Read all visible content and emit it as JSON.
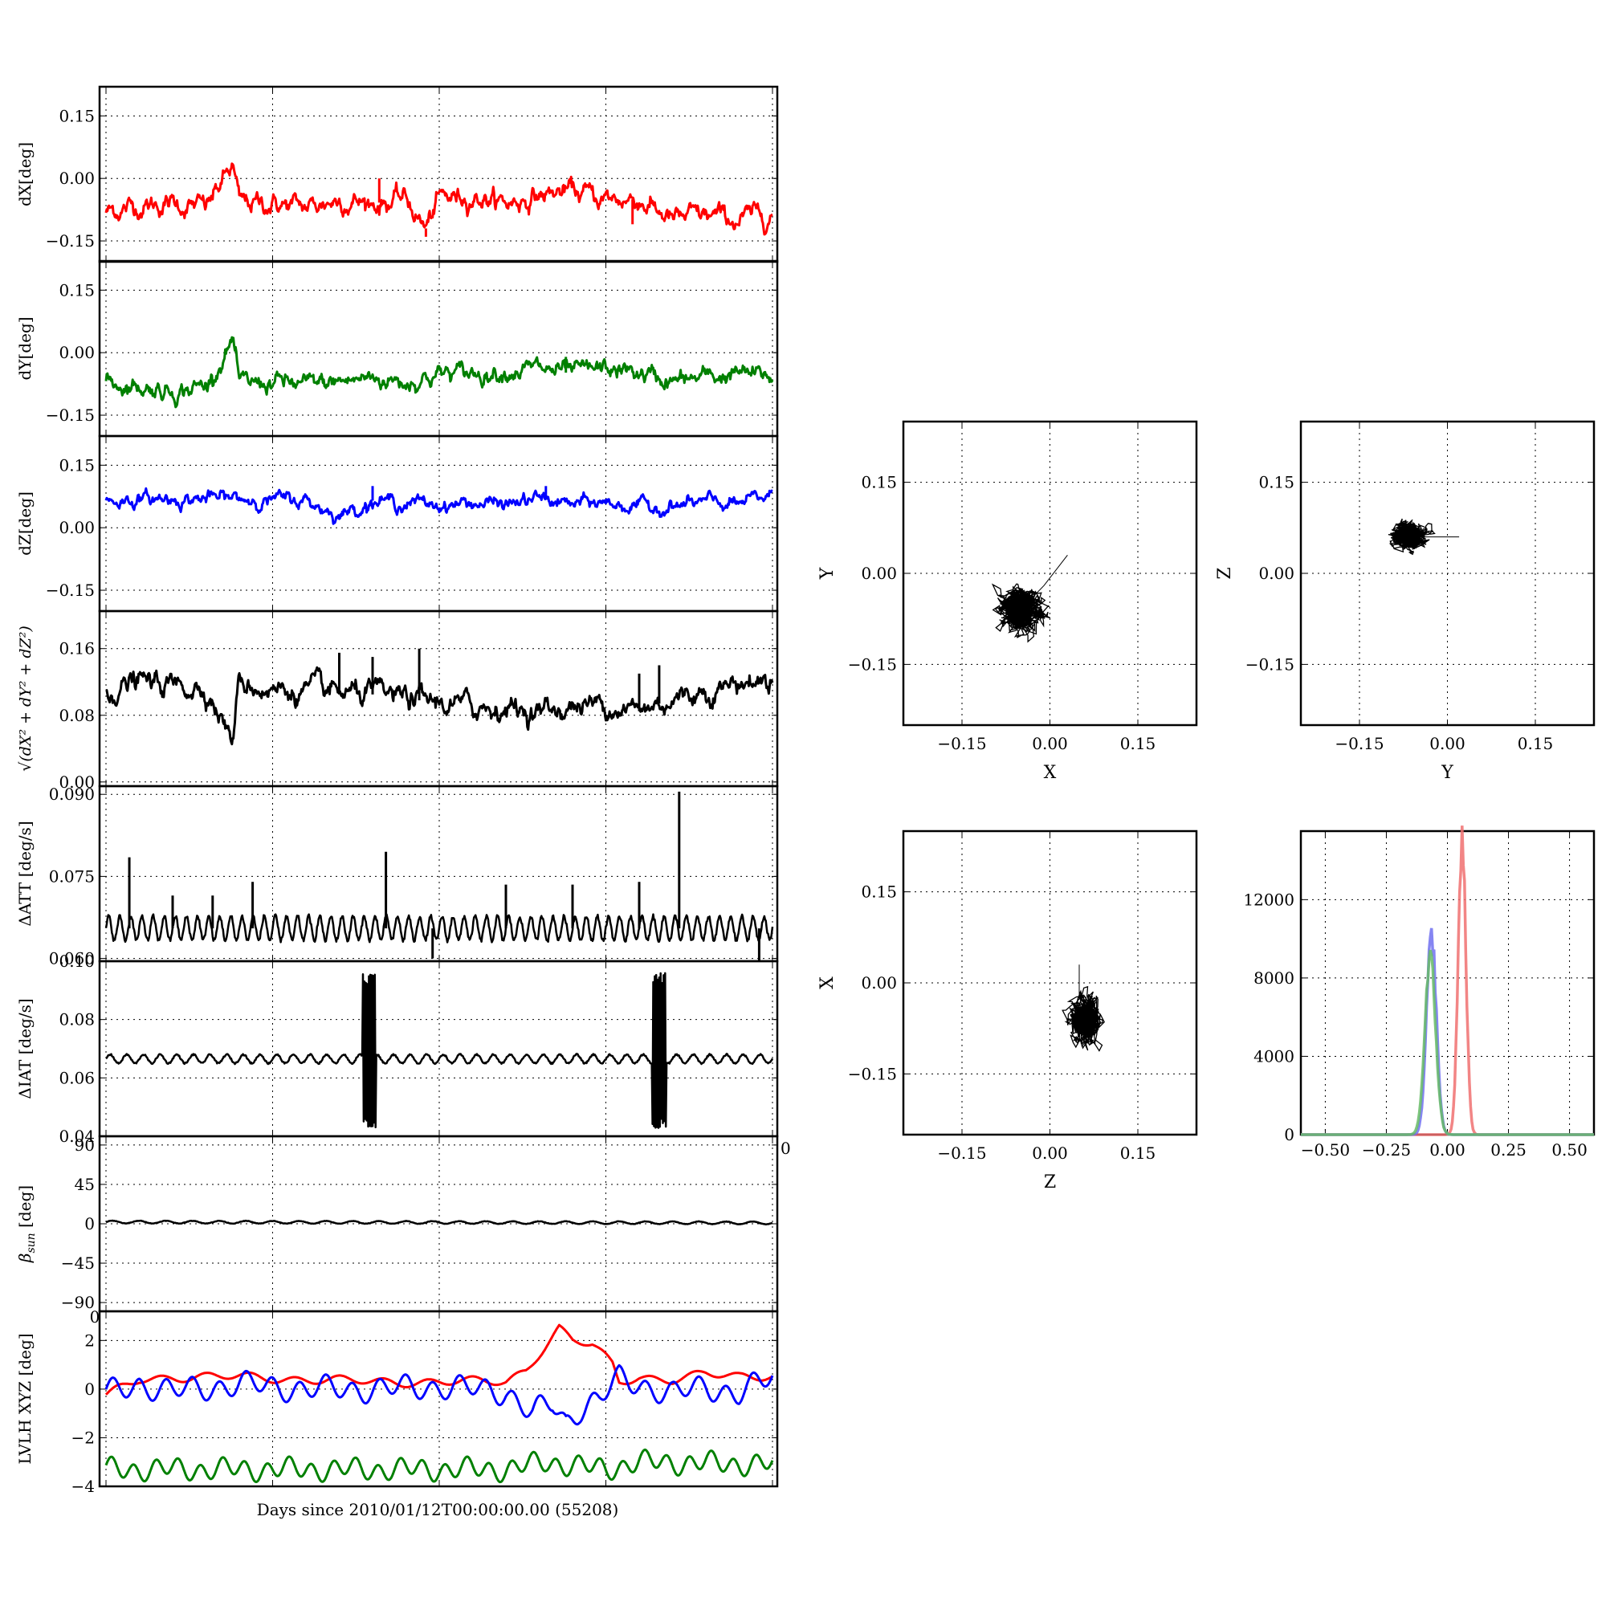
{
  "figure": {
    "xlabel": "Days since 2010/01/12T00:00:00.00 (55208)"
  },
  "colors": {
    "red": "#ff0000",
    "green": "#008000",
    "blue": "#0000ff",
    "black": "#000000",
    "hist_red": "#f07070",
    "hist_green": "#66bb66",
    "hist_blue": "#7070f0"
  },
  "chart_data": [
    {
      "id": "dX",
      "type": "line",
      "ylabel": "dX[deg]",
      "ylim": [
        -0.2,
        0.22
      ],
      "yticks": [
        "0.15",
        "0.00",
        "−0.15"
      ],
      "ytick_values": [
        0.15,
        0.0,
        -0.15
      ],
      "grid": true,
      "x_ticks_labeled": false,
      "series": [
        {
          "color": "red",
          "baseline": -0.06,
          "amp": 0.022,
          "points": [
            [
              0,
              -0.08
            ],
            [
              0.05,
              -0.065
            ],
            [
              0.1,
              -0.06
            ],
            [
              0.15,
              -0.07
            ],
            [
              0.19,
              0.03
            ],
            [
              0.2,
              -0.06
            ],
            [
              0.25,
              -0.06
            ],
            [
              0.3,
              -0.07
            ],
            [
              0.35,
              -0.05
            ],
            [
              0.4,
              -0.06
            ],
            [
              0.45,
              -0.05
            ],
            [
              0.48,
              -0.12
            ],
            [
              0.5,
              -0.05
            ],
            [
              0.55,
              -0.04
            ],
            [
              0.6,
              -0.06
            ],
            [
              0.65,
              -0.04
            ],
            [
              0.7,
              -0.03
            ],
            [
              0.75,
              -0.05
            ],
            [
              0.8,
              -0.05
            ],
            [
              0.85,
              -0.1
            ],
            [
              0.9,
              -0.09
            ],
            [
              0.95,
              -0.1
            ],
            [
              1,
              -0.08
            ]
          ],
          "spikes": [
            [
              0.19,
              0.03
            ],
            [
              0.48,
              -0.14
            ],
            [
              0.41,
              0.0
            ],
            [
              0.79,
              -0.11
            ]
          ]
        }
      ]
    },
    {
      "id": "dY",
      "type": "line",
      "ylabel": "dY[deg]",
      "ylim": [
        -0.2,
        0.22
      ],
      "yticks": [
        "0.15",
        "0.00",
        "−0.15"
      ],
      "ytick_values": [
        0.15,
        0.0,
        -0.15
      ],
      "grid": true,
      "x_ticks_labeled": false,
      "series": [
        {
          "color": "green",
          "baseline": -0.07,
          "amp": 0.02,
          "points": [
            [
              0,
              -0.07
            ],
            [
              0.05,
              -0.08
            ],
            [
              0.1,
              -0.09
            ],
            [
              0.15,
              -0.08
            ],
            [
              0.19,
              0.03
            ],
            [
              0.2,
              -0.08
            ],
            [
              0.25,
              -0.07
            ],
            [
              0.3,
              -0.08
            ],
            [
              0.35,
              -0.07
            ],
            [
              0.4,
              -0.06
            ],
            [
              0.45,
              -0.07
            ],
            [
              0.5,
              -0.05
            ],
            [
              0.55,
              -0.05
            ],
            [
              0.6,
              -0.04
            ],
            [
              0.65,
              -0.04
            ],
            [
              0.7,
              -0.05
            ],
            [
              0.75,
              -0.04
            ],
            [
              0.8,
              -0.05
            ],
            [
              0.85,
              -0.07
            ],
            [
              0.9,
              -0.06
            ],
            [
              0.95,
              -0.05
            ],
            [
              1,
              -0.06
            ]
          ],
          "spikes": [
            [
              0.19,
              0.03
            ],
            [
              0.69,
              -0.01
            ]
          ]
        }
      ]
    },
    {
      "id": "dZ",
      "type": "line",
      "ylabel": "dZ[deg]",
      "ylim": [
        -0.2,
        0.22
      ],
      "yticks": [
        "0.15",
        "0.00",
        "−0.15"
      ],
      "ytick_values": [
        0.15,
        0.0,
        -0.15
      ],
      "grid": true,
      "x_ticks_labeled": false,
      "series": [
        {
          "color": "blue",
          "baseline": 0.065,
          "amp": 0.015,
          "points": [
            [
              0,
              0.065
            ],
            [
              0.1,
              0.07
            ],
            [
              0.2,
              0.07
            ],
            [
              0.3,
              0.065
            ],
            [
              0.35,
              0.03
            ],
            [
              0.4,
              0.065
            ],
            [
              0.45,
              0.06
            ],
            [
              0.5,
              0.055
            ],
            [
              0.55,
              0.06
            ],
            [
              0.6,
              0.055
            ],
            [
              0.65,
              0.07
            ],
            [
              0.7,
              0.055
            ],
            [
              0.75,
              0.06
            ],
            [
              0.8,
              0.05
            ],
            [
              0.85,
              0.05
            ],
            [
              0.9,
              0.06
            ],
            [
              0.95,
              0.055
            ],
            [
              1,
              0.08
            ]
          ],
          "spikes": [
            [
              0.35,
              0.02
            ],
            [
              0.4,
              0.1
            ],
            [
              0.66,
              0.1
            ]
          ]
        }
      ]
    },
    {
      "id": "norm",
      "type": "line",
      "ylabel_html": true,
      "ylim": [
        -0.005,
        0.205
      ],
      "yticks": [
        "0.16",
        "0.08",
        "0.00"
      ],
      "ytick_values": [
        0.16,
        0.08,
        0.0
      ],
      "grid": true,
      "x_ticks_labeled": false,
      "series": [
        {
          "color": "black",
          "baseline": 0.11,
          "amp": 0.012,
          "points": [
            [
              0,
              0.11
            ],
            [
              0.05,
              0.12
            ],
            [
              0.1,
              0.115
            ],
            [
              0.15,
              0.115
            ],
            [
              0.19,
              0.05
            ],
            [
              0.2,
              0.12
            ],
            [
              0.25,
              0.11
            ],
            [
              0.3,
              0.11
            ],
            [
              0.35,
              0.105
            ],
            [
              0.4,
              0.105
            ],
            [
              0.45,
              0.1
            ],
            [
              0.5,
              0.095
            ],
            [
              0.55,
              0.09
            ],
            [
              0.6,
              0.09
            ],
            [
              0.65,
              0.085
            ],
            [
              0.7,
              0.09
            ],
            [
              0.75,
              0.095
            ],
            [
              0.8,
              0.085
            ],
            [
              0.85,
              0.1
            ],
            [
              0.9,
              0.11
            ],
            [
              0.95,
              0.12
            ],
            [
              1,
              0.12
            ]
          ],
          "spikes": [
            [
              0.19,
              0.05
            ],
            [
              0.35,
              0.155
            ],
            [
              0.4,
              0.15
            ],
            [
              0.47,
              0.16
            ],
            [
              0.8,
              0.13
            ],
            [
              0.83,
              0.14
            ]
          ]
        }
      ]
    },
    {
      "id": "datt",
      "type": "line",
      "ylabel": "ΔATT [deg/s]",
      "ylim": [
        0.0595,
        0.0915
      ],
      "yticks": [
        "0.090",
        "0.075",
        "0.060"
      ],
      "ytick_values": [
        0.09,
        0.075,
        0.06
      ],
      "grid": true,
      "x_ticks_labeled": false,
      "series": [
        {
          "color": "black",
          "baseline": 0.0655,
          "amp": 0.0022,
          "oscillate": 60,
          "points": [
            [
              0,
              0.0655
            ],
            [
              1,
              0.0655
            ]
          ],
          "spikes": [
            [
              0.035,
              0.0785
            ],
            [
              0.1,
              0.0715
            ],
            [
              0.16,
              0.0715
            ],
            [
              0.22,
              0.074
            ],
            [
              0.42,
              0.0795
            ],
            [
              0.6,
              0.0735
            ],
            [
              0.7,
              0.0735
            ],
            [
              0.8,
              0.074
            ],
            [
              0.86,
              0.0905
            ],
            [
              0.49,
              0.06
            ],
            [
              0.98,
              0.0585
            ]
          ]
        }
      ]
    },
    {
      "id": "diat",
      "type": "line",
      "ylabel": "ΔIAT [deg/s]",
      "ylim": [
        0.04,
        0.1
      ],
      "yticks": [
        "0.10",
        "0.08",
        "0.06",
        "0.04"
      ],
      "ytick_values": [
        0.1,
        0.08,
        0.06,
        0.04
      ],
      "grid": true,
      "x_ticks_labeled": false,
      "series": [
        {
          "color": "black",
          "baseline": 0.0665,
          "amp": 0.0015,
          "oscillate": 40,
          "points": [
            [
              0,
              0.0665
            ],
            [
              1,
              0.0665
            ]
          ],
          "bursts": [
            [
              0.385,
              0.405
            ],
            [
              0.82,
              0.84
            ]
          ]
        }
      ]
    },
    {
      "id": "beta",
      "type": "line",
      "ylabel_beta": true,
      "ylim": [
        -100,
        100
      ],
      "yticks": [
        "90",
        "45",
        "0",
        "−45",
        "−90"
      ],
      "ytick_values": [
        90,
        45,
        0,
        -45,
        -90
      ],
      "grid": true,
      "x_ticks_labeled": false,
      "series": [
        {
          "color": "black",
          "baseline": 1.5,
          "amp": 1.5,
          "oscillate": 25,
          "points": [
            [
              0,
              2
            ],
            [
              1,
              1
            ]
          ]
        }
      ]
    },
    {
      "id": "lvlh",
      "type": "line",
      "ylabel": "LVLH XYZ [deg]",
      "ylim": [
        -4,
        3.2
      ],
      "yticks": [
        "2",
        "0",
        "−2",
        "−4"
      ],
      "ytick_values": [
        2,
        0,
        -2,
        -4
      ],
      "xticks": [
        "0",
        "0"
      ],
      "grid": true,
      "x_ticks_labeled": false,
      "series": [
        {
          "color": "red",
          "points": [
            [
              0,
              -0.3
            ],
            [
              0.05,
              0.4
            ],
            [
              0.1,
              0.5
            ],
            [
              0.2,
              0.5
            ],
            [
              0.3,
              0.4
            ],
            [
              0.4,
              0.3
            ],
            [
              0.5,
              0.3
            ],
            [
              0.6,
              0.3
            ],
            [
              0.63,
              0.8
            ],
            [
              0.65,
              1.5
            ],
            [
              0.68,
              2.5
            ],
            [
              0.7,
              2.0
            ],
            [
              0.73,
              1.8
            ],
            [
              0.76,
              1.0
            ],
            [
              0.77,
              0.3
            ],
            [
              0.8,
              0.5
            ],
            [
              0.85,
              0.4
            ],
            [
              0.9,
              0.6
            ],
            [
              0.95,
              0.5
            ],
            [
              1,
              0.6
            ]
          ],
          "wobble": 0.15,
          "oscillate": 15
        },
        {
          "color": "blue",
          "points": [
            [
              0,
              -0.2
            ],
            [
              0.05,
              0.2
            ],
            [
              0.1,
              -0.1
            ],
            [
              0.2,
              0.2
            ],
            [
              0.3,
              0
            ],
            [
              0.4,
              0
            ],
            [
              0.5,
              0.1
            ],
            [
              0.6,
              -0.1
            ],
            [
              0.64,
              -1.0
            ],
            [
              0.67,
              -0.6
            ],
            [
              0.69,
              -1.4
            ],
            [
              0.71,
              -0.8
            ],
            [
              0.74,
              -0.4
            ],
            [
              0.77,
              0.4
            ],
            [
              0.8,
              0.2
            ],
            [
              0.85,
              -0.2
            ],
            [
              0.9,
              0.1
            ],
            [
              0.95,
              -0.2
            ],
            [
              1,
              0.5
            ]
          ],
          "wobble": 0.4,
          "oscillate": 25
        },
        {
          "color": "green",
          "points": [
            [
              0,
              -3.3
            ],
            [
              0.6,
              -3.3
            ],
            [
              0.66,
              -3.0
            ],
            [
              0.75,
              -3.3
            ],
            [
              0.8,
              -3.0
            ],
            [
              1,
              -3.1
            ]
          ],
          "wobble": 0.35,
          "oscillate": 30
        }
      ]
    },
    {
      "id": "xy",
      "type": "scatter",
      "xlabel": "X",
      "ylabel": "Y",
      "xlim": [
        -0.25,
        0.25
      ],
      "ylim": [
        -0.25,
        0.25
      ],
      "xticks": [
        "−0.15",
        "0.00",
        "0.15"
      ],
      "yticks": [
        "0.15",
        "0.00",
        "−0.15"
      ],
      "tick_values": [
        -0.15,
        0.0,
        0.15
      ],
      "grid": true,
      "cloud": {
        "cx": -0.05,
        "cy": -0.06,
        "sx": 0.022,
        "sy": 0.02,
        "tail": [
          [
            -0.01,
            -0.02
          ],
          [
            0.03,
            0.03
          ]
        ]
      }
    },
    {
      "id": "yz",
      "type": "scatter",
      "xlabel": "Y",
      "ylabel": "Z",
      "xlim": [
        -0.25,
        0.25
      ],
      "ylim": [
        -0.25,
        0.25
      ],
      "xticks": [
        "−0.15",
        "0.00",
        "0.15"
      ],
      "yticks": [
        "0.15",
        "0.00",
        "−0.15"
      ],
      "tick_values": [
        -0.15,
        0.0,
        0.15
      ],
      "grid": true,
      "cloud": {
        "cx": -0.065,
        "cy": 0.06,
        "sx": 0.018,
        "sy": 0.012,
        "tail": [
          [
            -0.03,
            0.06
          ],
          [
            0.02,
            0.06
          ]
        ]
      }
    },
    {
      "id": "zx",
      "type": "scatter",
      "xlabel": "Z",
      "ylabel": "X",
      "xlim": [
        -0.25,
        0.25
      ],
      "ylim": [
        -0.25,
        0.25
      ],
      "xticks": [
        "−0.15",
        "0.00",
        "0.15"
      ],
      "yticks": [
        "0.15",
        "0.00",
        "−0.15"
      ],
      "tick_values": [
        -0.15,
        0.0,
        0.15
      ],
      "grid": true,
      "cloud": {
        "cx": 0.06,
        "cy": -0.06,
        "sx": 0.014,
        "sy": 0.024,
        "tail": [
          [
            0.05,
            -0.02
          ],
          [
            0.05,
            0.03
          ]
        ]
      }
    },
    {
      "id": "hist",
      "type": "histogram",
      "xlim": [
        -0.6,
        0.6
      ],
      "ylim": [
        0,
        15500
      ],
      "xticks": [
        "−0.50",
        "−0.25",
        "0.00",
        "0.25",
        "0.50"
      ],
      "xtick_values": [
        -0.5,
        -0.25,
        0.0,
        0.25,
        0.5
      ],
      "yticks": [
        "12000",
        "8000",
        "4000",
        "0"
      ],
      "ytick_values": [
        12000,
        8000,
        4000,
        0
      ],
      "grid": true,
      "series": [
        {
          "color": "hist_red",
          "center": 0.06,
          "sigma": 0.016,
          "peak": 15000
        },
        {
          "color": "hist_blue",
          "center": -0.065,
          "sigma": 0.02,
          "peak": 10200
        },
        {
          "color": "hist_green",
          "center": -0.07,
          "sigma": 0.022,
          "peak": 9000
        }
      ]
    }
  ]
}
